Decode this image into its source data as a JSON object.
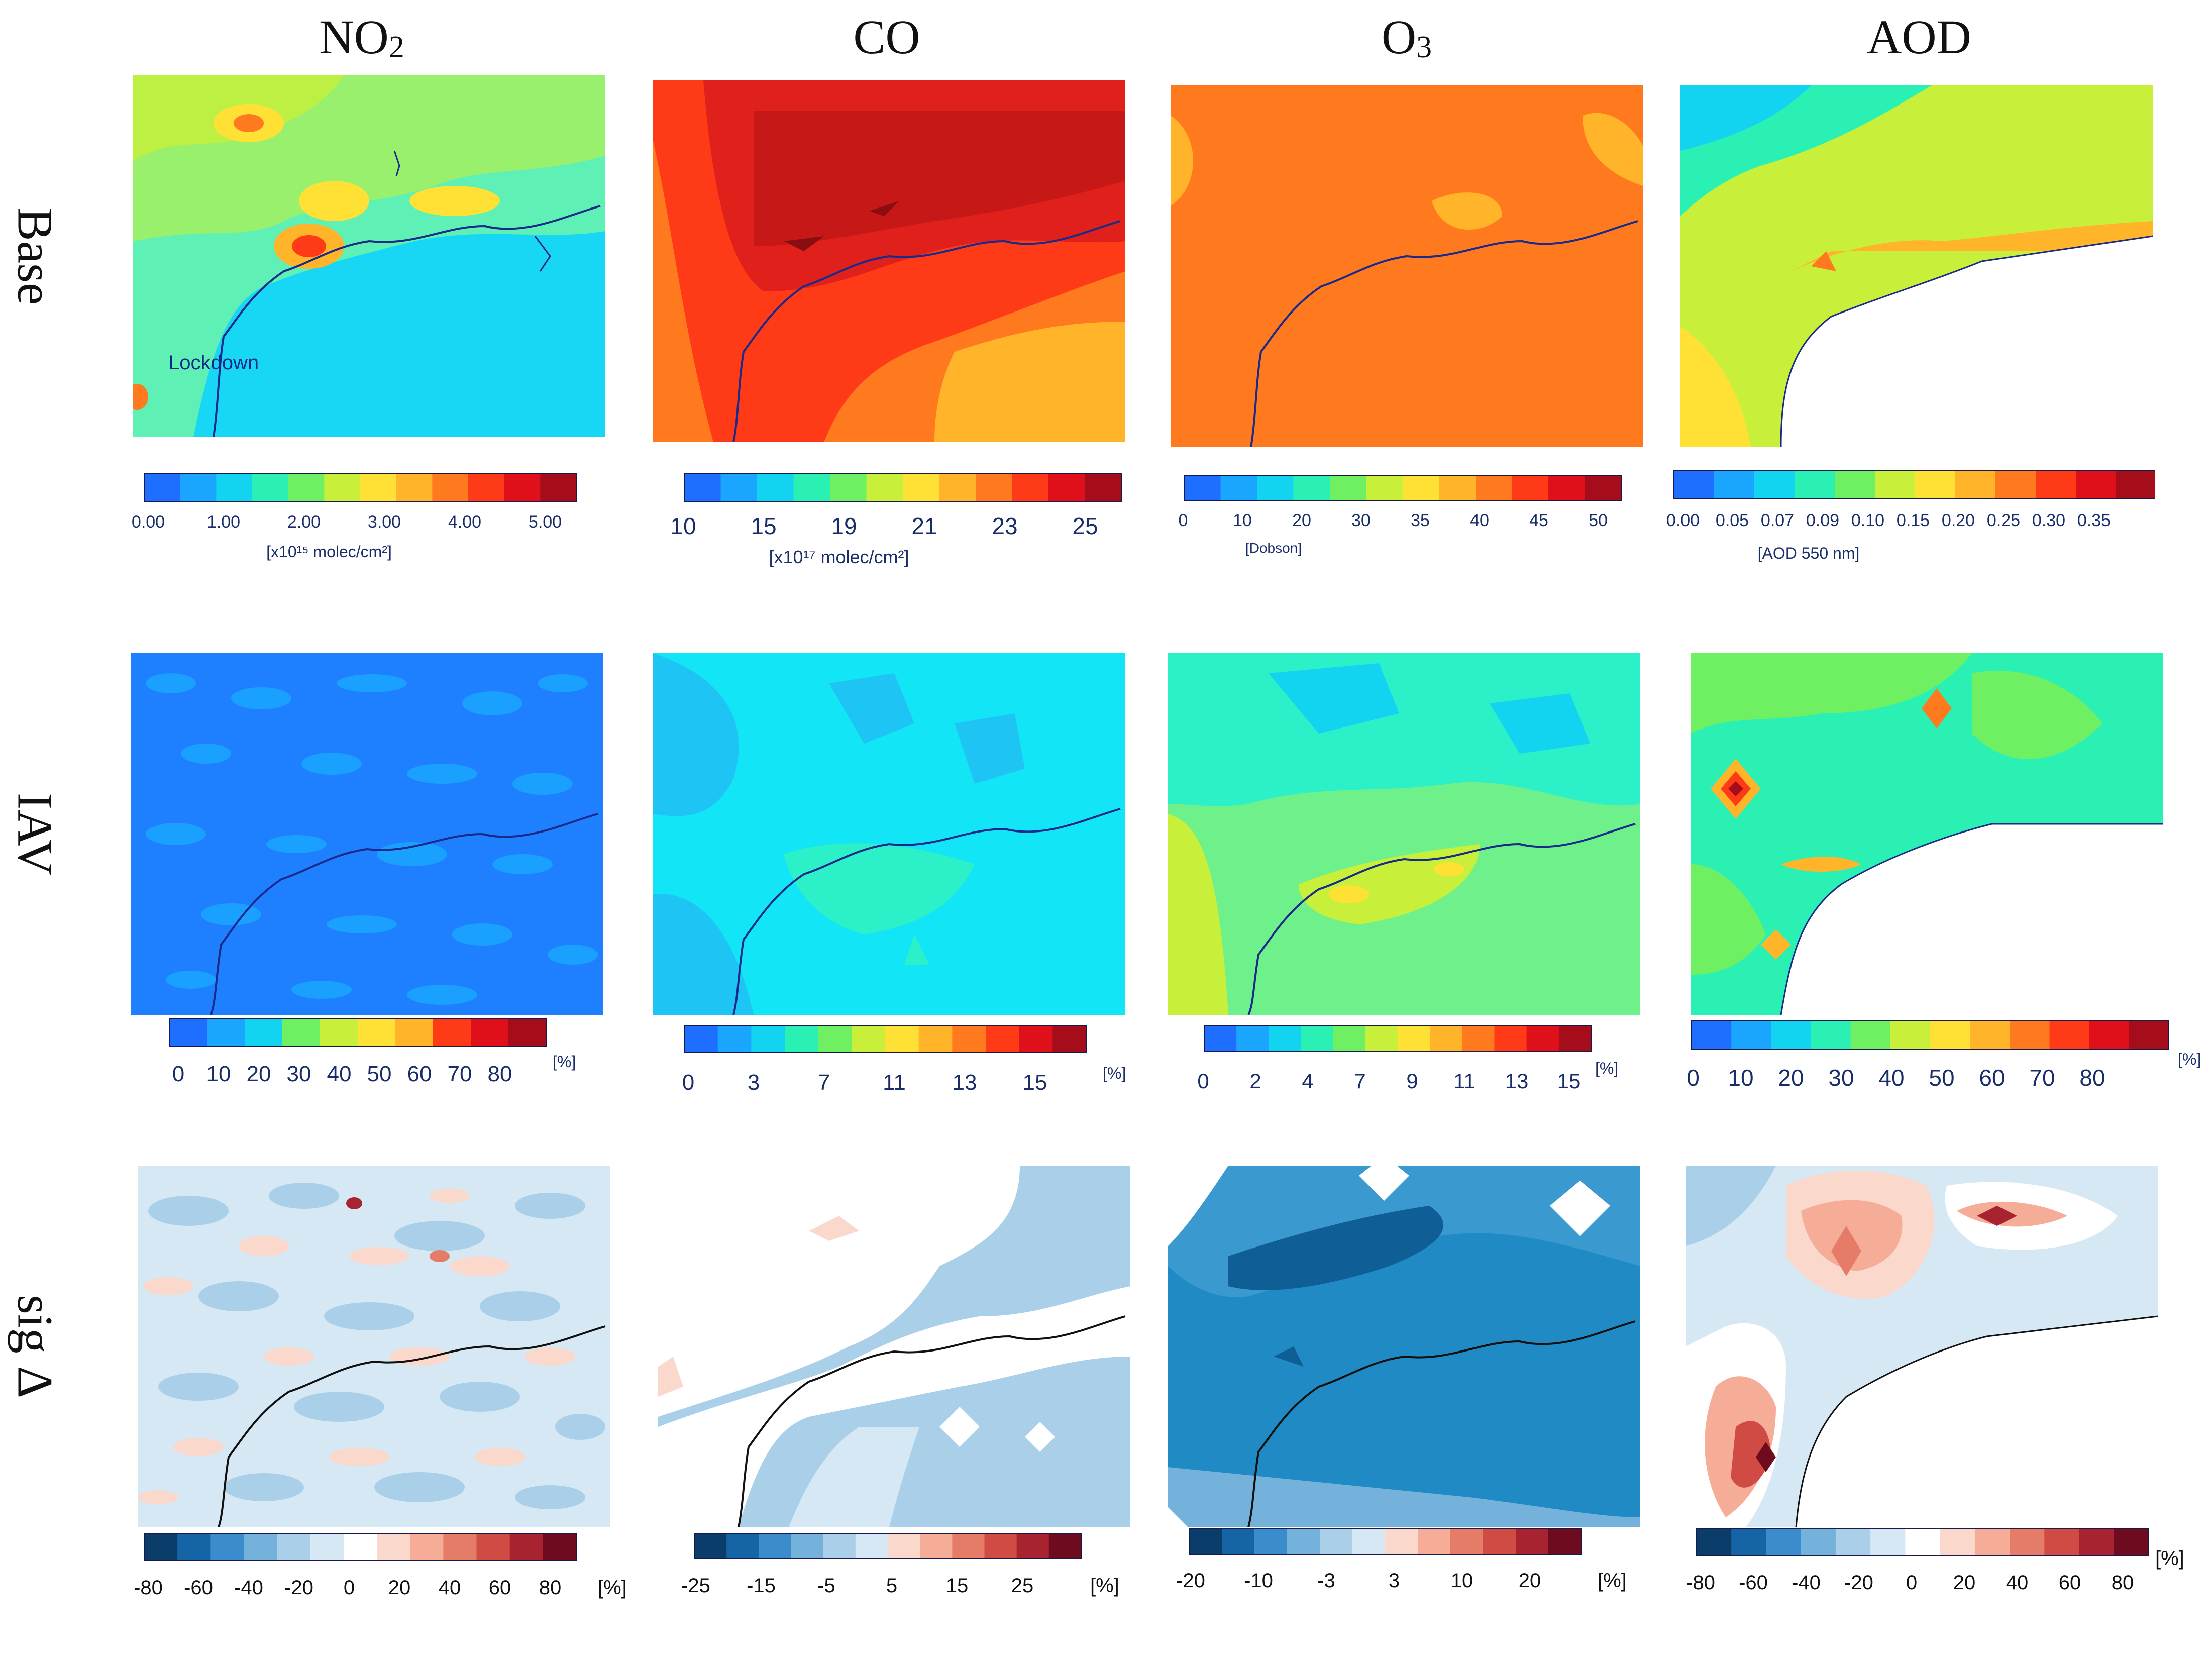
{
  "columns": [
    {
      "label": "NO",
      "sub": "2"
    },
    {
      "label": "CO",
      "sub": ""
    },
    {
      "label": "O",
      "sub": "3"
    },
    {
      "label": "AOD",
      "sub": ""
    }
  ],
  "rows": [
    "Base",
    "IAV",
    "sig Δ"
  ],
  "annotation": "Lockdown",
  "colorbars": {
    "base": [
      {
        "ticks": [
          "0.00",
          "1.00",
          "2.00",
          "3.00",
          "4.00",
          "5.00"
        ],
        "unit": "[x10¹⁵ molec/cm²]"
      },
      {
        "ticks": [
          "10",
          "15",
          "19",
          "21",
          "23",
          "25"
        ],
        "unit": "[x10¹⁷ molec/cm²]"
      },
      {
        "ticks": [
          "0",
          "10",
          "20",
          "30",
          "35",
          "40",
          "45",
          "50"
        ],
        "unit": "[Dobson]"
      },
      {
        "ticks": [
          "0.00",
          "0.05",
          "0.07",
          "0.09",
          "0.10",
          "0.15",
          "0.20",
          "0.25",
          "0.30",
          "0.35"
        ],
        "unit": "[AOD 550 nm]"
      }
    ],
    "iav": [
      {
        "ticks": [
          "0",
          "10",
          "20",
          "30",
          "40",
          "50",
          "60",
          "70",
          "80"
        ],
        "unit": "[%]"
      },
      {
        "ticks": [
          "0",
          "3",
          "7",
          "11",
          "13",
          "15"
        ],
        "unit": "[%]"
      },
      {
        "ticks": [
          "0",
          "2",
          "4",
          "7",
          "9",
          "11",
          "13",
          "15"
        ],
        "unit": "[%]"
      },
      {
        "ticks": [
          "0",
          "10",
          "20",
          "30",
          "40",
          "50",
          "60",
          "70",
          "80"
        ],
        "unit": "[%]"
      }
    ],
    "sig": [
      {
        "ticks": [
          "-80",
          "-60",
          "-40",
          "-20",
          "0",
          "20",
          "40",
          "60",
          "80"
        ],
        "unit": "[%]"
      },
      {
        "ticks": [
          "-25",
          "-15",
          "-5",
          "5",
          "15",
          "25"
        ],
        "unit": "[%]"
      },
      {
        "ticks": [
          "-20",
          "-10",
          "-3",
          "3",
          "10",
          "20"
        ],
        "unit": "[%]"
      },
      {
        "ticks": [
          "-80",
          "-60",
          "-40",
          "-20",
          "0",
          "20",
          "40",
          "60",
          "80"
        ],
        "unit": "[%]"
      }
    ]
  },
  "palettes": {
    "rainbow": [
      "#1e6fff",
      "#1aa6ff",
      "#12d4f0",
      "#2bf0b4",
      "#6ef062",
      "#c8f03a",
      "#ffe135",
      "#ffb42a",
      "#ff7a1e",
      "#ff3a16",
      "#e0101a",
      "#a50d1a"
    ],
    "diverging": [
      "#0b3d6b",
      "#1565a6",
      "#3a8ccc",
      "#74b2dc",
      "#a9d0e8",
      "#d6e8f3",
      "#ffffff",
      "#fbd8cc",
      "#f5ad98",
      "#e57c68",
      "#cf4b43",
      "#a82330",
      "#6e0b1e"
    ]
  }
}
